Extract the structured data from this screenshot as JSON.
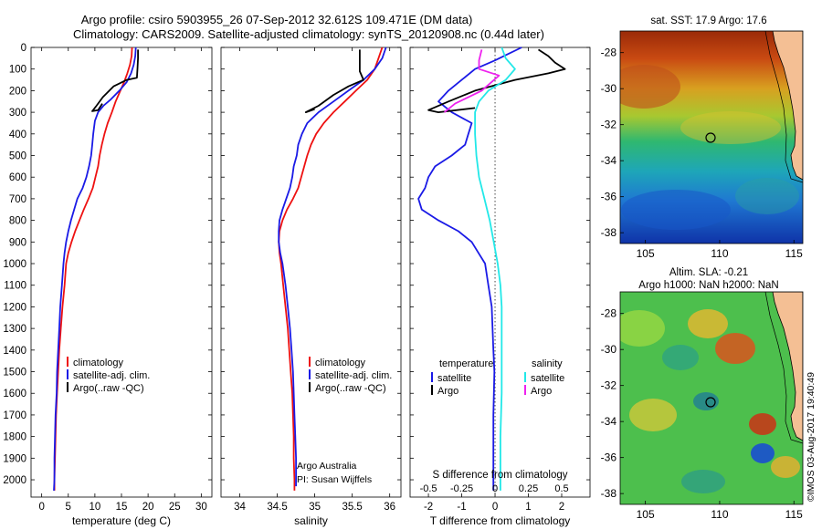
{
  "figure": {
    "title_line1": "Argo profile: csiro 5903955_26 07-Sep-2012 32.612S 109.471E (DM data)",
    "title_line2": "Climatology: CARS2009. Satellite-adjusted climatology: synTS_20120908.nc (0.44d later)",
    "watermark": "©IMOS 03-Aug-2017 19:40:49"
  },
  "colors": {
    "climatology": "#ee1111",
    "satellite": "#1a1ae6",
    "argo": "#000000",
    "sal_satellite": "#22e8e8",
    "sal_argo": "#ee22ee",
    "zero_line": "#333333"
  },
  "chart_data": [
    {
      "id": "temperature",
      "type": "line",
      "xlabel": "temperature (deg C)",
      "ylabel": "",
      "xlim": [
        -2,
        32
      ],
      "ylim": [
        2080,
        0
      ],
      "xticks": [
        0,
        5,
        10,
        15,
        20,
        25,
        30
      ],
      "yticks": [
        0,
        100,
        200,
        300,
        400,
        500,
        600,
        700,
        800,
        900,
        1000,
        1100,
        1200,
        1300,
        1400,
        1500,
        1600,
        1700,
        1800,
        1900,
        2000
      ],
      "legend": [
        "climatology",
        "satellite-adj. clim.",
        "Argo(..raw -QC)"
      ],
      "annotations": [],
      "series": [
        {
          "name": "climatology",
          "color_key": "climatology",
          "points": [
            [
              17.0,
              0
            ],
            [
              16.9,
              40
            ],
            [
              16.6,
              80
            ],
            [
              16.1,
              120
            ],
            [
              15.5,
              160
            ],
            [
              14.8,
              200
            ],
            [
              13.9,
              250
            ],
            [
              13.2,
              300
            ],
            [
              12.4,
              350
            ],
            [
              11.8,
              400
            ],
            [
              11.3,
              450
            ],
            [
              10.9,
              500
            ],
            [
              10.6,
              550
            ],
            [
              10.1,
              600
            ],
            [
              9.6,
              650
            ],
            [
              8.8,
              700
            ],
            [
              7.9,
              750
            ],
            [
              7.1,
              800
            ],
            [
              6.3,
              850
            ],
            [
              5.6,
              900
            ],
            [
              5.0,
              950
            ],
            [
              4.6,
              1000
            ],
            [
              4.3,
              1100
            ],
            [
              3.9,
              1200
            ],
            [
              3.6,
              1300
            ],
            [
              3.3,
              1400
            ],
            [
              3.1,
              1500
            ],
            [
              2.9,
              1600
            ],
            [
              2.7,
              1700
            ],
            [
              2.6,
              1800
            ],
            [
              2.5,
              1900
            ],
            [
              2.4,
              2000
            ],
            [
              2.4,
              2050
            ]
          ]
        },
        {
          "name": "satellite-adj. clim.",
          "color_key": "satellite",
          "points": [
            [
              17.7,
              0
            ],
            [
              17.6,
              40
            ],
            [
              17.3,
              80
            ],
            [
              16.8,
              120
            ],
            [
              16.0,
              160
            ],
            [
              14.6,
              200
            ],
            [
              13.0,
              240
            ],
            [
              11.6,
              270
            ],
            [
              10.6,
              300
            ],
            [
              10.0,
              340
            ],
            [
              9.7,
              400
            ],
            [
              9.5,
              450
            ],
            [
              9.3,
              500
            ],
            [
              8.9,
              550
            ],
            [
              8.4,
              600
            ],
            [
              7.7,
              650
            ],
            [
              6.7,
              700
            ],
            [
              6.1,
              750
            ],
            [
              5.5,
              800
            ],
            [
              5.0,
              850
            ],
            [
              4.6,
              900
            ],
            [
              4.3,
              950
            ],
            [
              4.1,
              1000
            ],
            [
              3.8,
              1100
            ],
            [
              3.5,
              1200
            ],
            [
              3.3,
              1300
            ],
            [
              3.1,
              1400
            ],
            [
              2.9,
              1500
            ],
            [
              2.8,
              1600
            ],
            [
              2.6,
              1700
            ],
            [
              2.5,
              1800
            ],
            [
              2.4,
              1900
            ],
            [
              2.4,
              2000
            ],
            [
              2.3,
              2050
            ]
          ]
        },
        {
          "name": "Argo(..raw -QC)",
          "color_key": "argo",
          "points": [
            [
              18.1,
              10
            ],
            [
              18.1,
              50
            ],
            [
              18.0,
              100
            ],
            [
              17.9,
              140
            ],
            [
              16.0,
              150
            ],
            [
              13.5,
              180
            ],
            [
              11.5,
              230
            ],
            [
              10.3,
              270
            ],
            [
              9.5,
              295
            ],
            [
              10.6,
              290
            ],
            [
              11.4,
              260
            ]
          ]
        }
      ]
    },
    {
      "id": "salinity",
      "type": "line",
      "xlabel": "salinity",
      "ylabel": "",
      "xlim": [
        33.75,
        36.15
      ],
      "ylim": [
        2080,
        0
      ],
      "xticks": [
        34,
        34.5,
        35,
        35.5,
        36
      ],
      "yticks": [],
      "legend": [
        "climatology",
        "satellite-adj. clim.",
        "Argo(..raw -QC)"
      ],
      "annotations": [
        "Argo Australia",
        "PI: Susan Wijffels"
      ],
      "series": [
        {
          "name": "climatology",
          "color_key": "climatology",
          "points": [
            [
              35.9,
              0
            ],
            [
              35.85,
              50
            ],
            [
              35.8,
              100
            ],
            [
              35.7,
              150
            ],
            [
              35.55,
              200
            ],
            [
              35.4,
              250
            ],
            [
              35.25,
              300
            ],
            [
              35.12,
              350
            ],
            [
              35.02,
              400
            ],
            [
              34.95,
              450
            ],
            [
              34.9,
              500
            ],
            [
              34.86,
              550
            ],
            [
              34.82,
              600
            ],
            [
              34.78,
              650
            ],
            [
              34.71,
              700
            ],
            [
              34.63,
              750
            ],
            [
              34.57,
              800
            ],
            [
              34.53,
              850
            ],
            [
              34.52,
              900
            ],
            [
              34.53,
              950
            ],
            [
              34.55,
              1000
            ],
            [
              34.58,
              1100
            ],
            [
              34.61,
              1200
            ],
            [
              34.64,
              1300
            ],
            [
              34.66,
              1400
            ],
            [
              34.68,
              1500
            ],
            [
              34.7,
              1600
            ],
            [
              34.71,
              1700
            ],
            [
              34.72,
              1800
            ],
            [
              34.72,
              1900
            ],
            [
              34.73,
              2000
            ],
            [
              34.73,
              2050
            ]
          ]
        },
        {
          "name": "satellite-adj. clim.",
          "color_key": "satellite",
          "points": [
            [
              35.95,
              0
            ],
            [
              35.9,
              50
            ],
            [
              35.8,
              100
            ],
            [
              35.65,
              150
            ],
            [
              35.45,
              200
            ],
            [
              35.25,
              250
            ],
            [
              35.05,
              300
            ],
            [
              34.9,
              350
            ],
            [
              34.83,
              400
            ],
            [
              34.78,
              450
            ],
            [
              34.76,
              500
            ],
            [
              34.72,
              550
            ],
            [
              34.7,
              600
            ],
            [
              34.67,
              650
            ],
            [
              34.62,
              700
            ],
            [
              34.57,
              750
            ],
            [
              34.53,
              800
            ],
            [
              34.52,
              850
            ],
            [
              34.52,
              900
            ],
            [
              34.54,
              950
            ],
            [
              34.57,
              1000
            ],
            [
              34.61,
              1100
            ],
            [
              34.64,
              1200
            ],
            [
              34.67,
              1300
            ],
            [
              34.69,
              1400
            ],
            [
              34.71,
              1500
            ],
            [
              34.72,
              1600
            ],
            [
              34.73,
              1700
            ],
            [
              34.74,
              1800
            ],
            [
              34.75,
              1900
            ],
            [
              34.75,
              2000
            ],
            [
              34.75,
              2030
            ]
          ]
        },
        {
          "name": "Argo(..raw -QC)",
          "color_key": "argo",
          "points": [
            [
              35.6,
              10
            ],
            [
              35.6,
              60
            ],
            [
              35.6,
              110
            ],
            [
              35.65,
              150
            ],
            [
              35.45,
              180
            ],
            [
              35.25,
              220
            ],
            [
              35.05,
              270
            ],
            [
              34.88,
              300
            ],
            [
              35.0,
              285
            ]
          ]
        }
      ]
    },
    {
      "id": "differences",
      "type": "line",
      "xlabel": "T difference from climatology",
      "xlabel_top": "S difference from climatology",
      "ylabel": "",
      "xlim": [
        -2.55,
        2.85
      ],
      "xticks": [
        -2,
        -1,
        0,
        1,
        2
      ],
      "xticks_top": [
        -0.5,
        -0.25,
        0,
        0.25,
        0.5
      ],
      "ylim": [
        2080,
        0
      ],
      "yticks": [],
      "legend_headers": [
        "temperature",
        "salinity"
      ],
      "legend": [
        "satellite",
        "Argo",
        "satellite",
        "Argo"
      ],
      "annotations": [],
      "series": [
        {
          "name": "temperature satellite",
          "color_key": "satellite",
          "points": [
            [
              0.8,
              0
            ],
            [
              0.4,
              30
            ],
            [
              0,
              60
            ],
            [
              -0.6,
              100
            ],
            [
              -1.0,
              150
            ],
            [
              -1.4,
              200
            ],
            [
              -1.7,
              250
            ],
            [
              -1.3,
              300
            ],
            [
              -0.7,
              350
            ],
            [
              -0.8,
              400
            ],
            [
              -0.9,
              450
            ],
            [
              -1.3,
              500
            ],
            [
              -1.8,
              550
            ],
            [
              -2.0,
              600
            ],
            [
              -2.1,
              650
            ],
            [
              -2.3,
              700
            ],
            [
              -2.2,
              750
            ],
            [
              -1.7,
              800
            ],
            [
              -1.1,
              850
            ],
            [
              -0.7,
              900
            ],
            [
              -0.5,
              950
            ],
            [
              -0.3,
              1000
            ],
            [
              -0.2,
              1100
            ],
            [
              -0.1,
              1200
            ],
            [
              -0.05,
              1400
            ],
            [
              -0.02,
              1500
            ],
            [
              -0.05,
              1700
            ],
            [
              -0.05,
              1900
            ],
            [
              -0.05,
              2050
            ]
          ]
        },
        {
          "name": "temperature Argo",
          "color_key": "argo",
          "points": [
            [
              1.3,
              10
            ],
            [
              1.6,
              40
            ],
            [
              1.8,
              70
            ],
            [
              2.1,
              100
            ],
            [
              1.6,
              120
            ],
            [
              0.6,
              150
            ],
            [
              -0.6,
              200
            ],
            [
              -1.4,
              250
            ],
            [
              -2.0,
              290
            ],
            [
              -1.7,
              300
            ],
            [
              -0.6,
              280
            ]
          ]
        },
        {
          "name": "salinity satellite",
          "color_key": "sal_satellite",
          "points": [
            [
              0.05,
              0
            ],
            [
              0.08,
              50
            ],
            [
              0.15,
              100
            ],
            [
              0.08,
              150
            ],
            [
              -0.05,
              200
            ],
            [
              -0.12,
              250
            ],
            [
              -0.15,
              300
            ],
            [
              -0.15,
              400
            ],
            [
              -0.14,
              500
            ],
            [
              -0.12,
              600
            ],
            [
              -0.08,
              700
            ],
            [
              -0.04,
              800
            ],
            [
              -0.01,
              900
            ],
            [
              0.02,
              1000
            ],
            [
              0.04,
              1100
            ],
            [
              0.05,
              1200
            ],
            [
              0.05,
              1400
            ],
            [
              0.05,
              1600
            ],
            [
              0.04,
              1800
            ],
            [
              0.04,
              2000
            ],
            [
              0.04,
              2050
            ]
          ]
        },
        {
          "name": "salinity Argo",
          "color_key": "sal_argo",
          "points": [
            [
              -0.1,
              10
            ],
            [
              -0.12,
              60
            ],
            [
              -0.12,
              100
            ],
            [
              0.03,
              130
            ],
            [
              -0.1,
              200
            ],
            [
              -0.3,
              260
            ],
            [
              -0.38,
              300
            ]
          ]
        }
      ]
    },
    {
      "id": "sst_map",
      "type": "heatmap",
      "title": "sat. SST: 17.9 Argo: 17.6",
      "subtitle": "",
      "xlim": [
        103.3,
        115.6
      ],
      "ylim": [
        -38.6,
        -26.8
      ],
      "xticks": [
        105,
        110,
        115
      ],
      "yticks": [
        -28,
        -30,
        -32,
        -34,
        -36,
        -38
      ],
      "marker": [
        109.471,
        -32.612
      ]
    },
    {
      "id": "sla_map",
      "type": "heatmap",
      "title": "Altim. SLA: -0.21",
      "subtitle": "Argo h1000: NaN h2000: NaN",
      "xlim": [
        103.3,
        115.6
      ],
      "ylim": [
        -38.6,
        -26.8
      ],
      "xticks": [
        105,
        110,
        115
      ],
      "yticks": [
        -28,
        -30,
        -32,
        -34,
        -36,
        -38
      ],
      "marker": [
        109.471,
        -32.612
      ]
    }
  ]
}
